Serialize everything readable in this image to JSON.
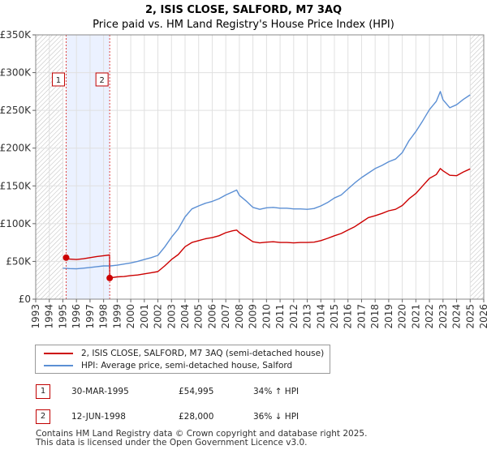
{
  "chart_data": {
    "type": "line",
    "title": "2, ISIS CLOSE, SALFORD, M7 3AQ",
    "subtitle": "Price paid vs. HM Land Registry's House Price Index (HPI)",
    "xlabel": "",
    "ylabel": "",
    "xlim": [
      1993,
      2026
    ],
    "ylim": [
      0,
      350000
    ],
    "x_ticks": [
      "1993",
      "1994",
      "1995",
      "1996",
      "1997",
      "1998",
      "1999",
      "2000",
      "2001",
      "2002",
      "2003",
      "2004",
      "2005",
      "2006",
      "2007",
      "2008",
      "2009",
      "2010",
      "2011",
      "2012",
      "2013",
      "2014",
      "2015",
      "2016",
      "2017",
      "2018",
      "2019",
      "2020",
      "2021",
      "2022",
      "2023",
      "2024",
      "2025",
      "2026"
    ],
    "y_ticks": [
      {
        "value": 0,
        "label": "£0"
      },
      {
        "value": 50000,
        "label": "£50K"
      },
      {
        "value": 100000,
        "label": "£100K"
      },
      {
        "value": 150000,
        "label": "£150K"
      },
      {
        "value": 200000,
        "label": "£200K"
      },
      {
        "value": 250000,
        "label": "£250K"
      },
      {
        "value": 300000,
        "label": "£300K"
      },
      {
        "value": 350000,
        "label": "£350K"
      }
    ],
    "grid": true,
    "shaded_region": {
      "from": 1995.24,
      "to": 1998.45
    },
    "hatched_before": 1995.0,
    "hatched_after": 2025.0,
    "series": [
      {
        "name": "2, ISIS CLOSE, SALFORD, M7 3AQ (semi-detached house)",
        "color": "#cc0000",
        "x": [
          1995.24,
          1995.5,
          1996,
          1996.5,
          1997,
          1997.5,
          1998,
          1998.44,
          1998.45,
          1998.5,
          1999,
          1999.5,
          2000,
          2000.5,
          2001,
          2001.5,
          2002,
          2002.5,
          2003,
          2003.5,
          2004,
          2004.5,
          2005,
          2005.5,
          2006,
          2006.5,
          2007,
          2007.5,
          2007.8,
          2008,
          2008.5,
          2009,
          2009.5,
          2010,
          2010.5,
          2011,
          2011.5,
          2012,
          2012.5,
          2013,
          2013.5,
          2014,
          2014.5,
          2015,
          2015.5,
          2016,
          2016.5,
          2017,
          2017.5,
          2018,
          2018.5,
          2019,
          2019.5,
          2020,
          2020.5,
          2021,
          2021.5,
          2022,
          2022.5,
          2022.8,
          2023,
          2023.5,
          2024,
          2024.5,
          2025
        ],
        "values": [
          54995,
          53000,
          52500,
          53500,
          55000,
          56500,
          57500,
          58500,
          28000,
          28200,
          29500,
          30000,
          31200,
          32000,
          33500,
          35000,
          36500,
          44000,
          52500,
          59000,
          69500,
          75000,
          77500,
          80000,
          81500,
          84000,
          88000,
          90500,
          91500,
          88000,
          82000,
          76000,
          74500,
          75500,
          76000,
          75000,
          75000,
          74500,
          75000,
          75000,
          75500,
          77500,
          80500,
          84000,
          87000,
          91500,
          96000,
          102000,
          108000,
          110500,
          113500,
          117000,
          119000,
          124000,
          133000,
          140000,
          150000,
          160000,
          165000,
          173000,
          170000,
          164000,
          163500,
          168500,
          172500
        ]
      },
      {
        "name": "HPI: Average price, semi-detached house, Salford",
        "color": "#5b8fd4",
        "x": [
          1995,
          1995.5,
          1996,
          1996.5,
          1997,
          1997.5,
          1998,
          1998.5,
          1999,
          1999.5,
          2000,
          2000.5,
          2001,
          2001.5,
          2002,
          2002.5,
          2003,
          2003.5,
          2004,
          2004.5,
          2005,
          2005.5,
          2006,
          2006.5,
          2007,
          2007.5,
          2007.8,
          2008,
          2008.5,
          2009,
          2009.5,
          2010,
          2010.5,
          2011,
          2011.5,
          2012,
          2012.5,
          2013,
          2013.5,
          2014,
          2014.5,
          2015,
          2015.5,
          2016,
          2016.5,
          2017,
          2017.5,
          2018,
          2018.5,
          2019,
          2019.5,
          2020,
          2020.5,
          2021,
          2021.5,
          2022,
          2022.5,
          2022.8,
          2023,
          2023.5,
          2024,
          2024.5,
          2025
        ],
        "values": [
          41000,
          40500,
          40200,
          41000,
          42000,
          43000,
          44000,
          44000,
          45000,
          46500,
          48000,
          50000,
          52500,
          55000,
          58000,
          69000,
          82000,
          93000,
          109000,
          119500,
          123500,
          127000,
          129500,
          133000,
          138000,
          142000,
          144500,
          137500,
          130000,
          121500,
          119000,
          121000,
          121500,
          120500,
          120500,
          119500,
          119500,
          119000,
          120000,
          123500,
          128000,
          134000,
          138000,
          146000,
          154000,
          161000,
          167000,
          173000,
          177000,
          182000,
          185500,
          194000,
          210000,
          222000,
          236000,
          251000,
          262000,
          275000,
          264000,
          253500,
          257500,
          264500,
          270500
        ]
      }
    ],
    "markers": [
      {
        "label": "1",
        "x": 1995.24,
        "value": 54995
      },
      {
        "label": "2",
        "x": 1998.45,
        "value": 28000
      }
    ]
  },
  "legend": {
    "entries": [
      {
        "label": "2, ISIS CLOSE, SALFORD, M7 3AQ (semi-detached house)",
        "color": "#cc0000"
      },
      {
        "label": "HPI: Average price, semi-detached house, Salford",
        "color": "#5b8fd4"
      }
    ]
  },
  "transactions": [
    {
      "id": "1",
      "date": "30-MAR-1995",
      "price": "£54,995",
      "hpi": "34% ↑ HPI"
    },
    {
      "id": "2",
      "date": "12-JUN-1998",
      "price": "£28,000",
      "hpi": "36% ↓ HPI"
    }
  ],
  "footer": {
    "line1": "Contains HM Land Registry data © Crown copyright and database right 2025.",
    "line2": "This data is licensed under the Open Government Licence v3.0."
  }
}
